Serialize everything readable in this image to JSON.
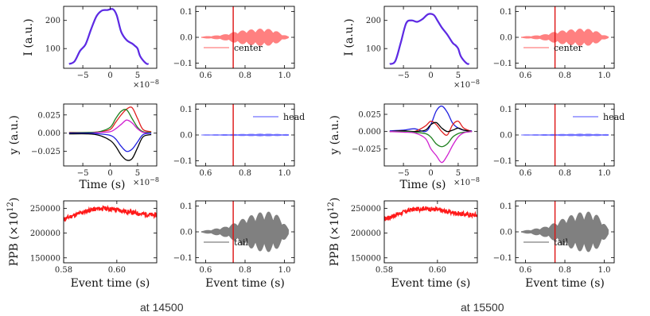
{
  "captions": [
    "at 14500",
    "at 15500"
  ],
  "labels": {
    "profile_ylabel": "I (a.u.)",
    "centroid_ylabel": "y (a.u.)",
    "ppb_ylabel_main": "PPB",
    "ppb_ylabel_unit": "(×10",
    "ppb_ylabel_exp": "12",
    "ppb_ylabel_close": ")",
    "time_xlabel": "Time (s)",
    "event_xlabel": "Event time (s)",
    "exp_label_base": "×10",
    "exp_label_power": "−8"
  },
  "legends": {
    "center": "center",
    "head": "head",
    "tail": "tail"
  },
  "colors": {
    "profile": "#7a1fd6",
    "center": "#ff8080",
    "head": "#7070ff",
    "tail": "#808080",
    "ppb": "#ff1a1a",
    "marker": "#dd1111"
  },
  "chart_data": [
    {
      "panel": "at 14500 / longitudinal profile",
      "type": "line",
      "x": [
        -7.5,
        -6.5,
        -5.5,
        -4.5,
        -3.5,
        -2.5,
        -1.5,
        -0.5,
        0.5,
        1.2,
        2.0,
        3.0,
        4.0,
        4.5,
        5.0,
        5.5,
        6.5,
        7.0
      ],
      "y": [
        45,
        55,
        92,
        115,
        168,
        215,
        235,
        237,
        240,
        218,
        160,
        130,
        118,
        110,
        100,
        72,
        48,
        45
      ],
      "xlim": [
        -8.5,
        8.5
      ],
      "ylim": [
        30,
        250
      ],
      "xticks": [
        -5,
        0,
        5
      ],
      "yticks": [
        100,
        200
      ]
    },
    {
      "panel": "at 14500 / center",
      "type": "line",
      "legend": [
        "center"
      ],
      "xlim": [
        0.55,
        1.05
      ],
      "ylim": [
        -0.12,
        0.12
      ],
      "xticks": [
        0.6,
        0.8,
        1.0
      ],
      "yticks": [
        -0.1,
        0.0,
        0.1
      ],
      "envelope_x": [
        0.58,
        0.65,
        0.7,
        0.75,
        0.8,
        0.85,
        0.9,
        0.95,
        0.99,
        1.02
      ],
      "envelope_y": [
        0.003,
        0.007,
        0.012,
        0.022,
        0.028,
        0.032,
        0.035,
        0.028,
        0.012,
        0.003
      ],
      "marker_x": 0.74
    },
    {
      "panel": "at 14500 / head-tail centroid",
      "type": "line",
      "xlim": [
        -8.5,
        8.5
      ],
      "ylim": [
        -0.045,
        0.04
      ],
      "xticks": [
        -5,
        0,
        5
      ],
      "yticks": [
        -0.025,
        0.0,
        0.025
      ],
      "series": [
        {
          "color": "#e02020",
          "x": [
            -7.5,
            -4,
            -2,
            0,
            1,
            2,
            3,
            4,
            5,
            6,
            7.5
          ],
          "y": [
            0.001,
            0.001,
            0.002,
            0.005,
            0.015,
            0.025,
            0.033,
            0.035,
            0.02,
            0.005,
            0.002
          ]
        },
        {
          "color": "#208020",
          "x": [
            -7.5,
            -4,
            -2,
            0,
            1,
            2,
            3,
            4,
            5,
            6,
            7.5
          ],
          "y": [
            0.0005,
            0.001,
            0.002,
            0.008,
            0.02,
            0.03,
            0.032,
            0.02,
            0.008,
            0.002,
            0.001
          ]
        },
        {
          "color": "#d020d0",
          "x": [
            -7.5,
            -4,
            -2,
            0,
            1,
            2,
            3,
            4,
            5,
            6,
            7.5
          ],
          "y": [
            0.0,
            0.0,
            0.001,
            0.002,
            0.006,
            0.012,
            0.018,
            0.014,
            0.006,
            0.001,
            0.0
          ]
        },
        {
          "color": "#2020e0",
          "x": [
            -7.5,
            -4,
            -2,
            0,
            1,
            2,
            3,
            4,
            5,
            6,
            7.5
          ],
          "y": [
            0.0,
            0.0,
            -0.001,
            -0.003,
            -0.008,
            -0.018,
            -0.025,
            -0.022,
            -0.012,
            -0.002,
            0.0
          ]
        },
        {
          "color": "#000000",
          "x": [
            -7.5,
            -4,
            -2,
            0,
            1,
            2,
            3,
            4,
            5,
            6,
            7.5
          ],
          "y": [
            -0.001,
            -0.001,
            -0.003,
            -0.01,
            -0.018,
            -0.03,
            -0.037,
            -0.035,
            -0.02,
            -0.005,
            -0.002
          ]
        }
      ]
    },
    {
      "panel": "at 14500 / head",
      "type": "line",
      "legend": [
        "head"
      ],
      "xlim": [
        0.55,
        1.05
      ],
      "ylim": [
        -0.12,
        0.12
      ],
      "xticks": [
        0.6,
        0.8,
        1.0
      ],
      "yticks": [
        -0.1,
        0.0,
        0.1
      ],
      "envelope_x": [
        0.58,
        0.7,
        0.8,
        0.9,
        1.02
      ],
      "envelope_y": [
        0.002,
        0.003,
        0.004,
        0.005,
        0.003
      ],
      "marker_x": 0.74
    },
    {
      "panel": "at 14500 / PPB",
      "type": "line",
      "x": [
        0.58,
        0.585,
        0.59,
        0.595,
        0.6,
        0.605,
        0.61,
        0.615
      ],
      "y": [
        228000,
        238000,
        247000,
        250000,
        247000,
        242000,
        238000,
        236000
      ],
      "xlim": [
        0.58,
        0.615
      ],
      "ylim": [
        140000,
        265000
      ],
      "xticks": [
        0.58,
        0.6
      ],
      "yticks": [
        150000,
        200000,
        250000
      ]
    },
    {
      "panel": "at 14500 / tail",
      "type": "line",
      "legend": [
        "tail"
      ],
      "xlim": [
        0.55,
        1.05
      ],
      "ylim": [
        -0.12,
        0.12
      ],
      "xticks": [
        0.6,
        0.8,
        1.0
      ],
      "yticks": [
        -0.1,
        0.0,
        0.1
      ],
      "envelope_x": [
        0.58,
        0.62,
        0.66,
        0.7,
        0.75,
        0.8,
        0.85,
        0.9,
        0.95,
        0.99,
        1.02
      ],
      "envelope_y": [
        0.004,
        0.008,
        0.014,
        0.02,
        0.035,
        0.055,
        0.07,
        0.08,
        0.075,
        0.045,
        0.01
      ],
      "marker_x": 0.74
    },
    {
      "panel": "at 15500 / longitudinal profile",
      "type": "line",
      "x": [
        -7.5,
        -6.5,
        -5.5,
        -4.5,
        -3.5,
        -2.5,
        -1.5,
        -0.5,
        0.5,
        1.2,
        2.0,
        3.0,
        4.0,
        4.5,
        5.0,
        5.5,
        6.5,
        7.0
      ],
      "y": [
        45,
        55,
        120,
        190,
        200,
        195,
        205,
        222,
        220,
        200,
        175,
        150,
        120,
        112,
        100,
        72,
        48,
        45
      ],
      "xlim": [
        -8.5,
        8.5
      ],
      "ylim": [
        30,
        250
      ],
      "xticks": [
        -5,
        0,
        5
      ],
      "yticks": [
        100,
        200
      ]
    },
    {
      "panel": "at 15500 / center",
      "type": "line",
      "legend": [
        "center"
      ],
      "xlim": [
        0.55,
        1.05
      ],
      "ylim": [
        -0.12,
        0.12
      ],
      "xticks": [
        0.6,
        0.8,
        1.0
      ],
      "yticks": [
        -0.1,
        0.0,
        0.1
      ],
      "envelope_x": [
        0.58,
        0.65,
        0.7,
        0.75,
        0.8,
        0.85,
        0.9,
        0.95,
        0.99,
        1.02
      ],
      "envelope_y": [
        0.003,
        0.007,
        0.012,
        0.022,
        0.028,
        0.032,
        0.035,
        0.028,
        0.012,
        0.003
      ],
      "marker_x": 0.75
    },
    {
      "panel": "at 15500 / head-tail centroid",
      "type": "line",
      "xlim": [
        -8.5,
        8.5
      ],
      "ylim": [
        -0.05,
        0.04
      ],
      "xticks": [
        -5,
        0,
        5
      ],
      "yticks": [
        -0.025,
        0.0,
        0.025
      ],
      "series": [
        {
          "color": "#2020e0",
          "x": [
            -7.5,
            -5,
            -3,
            -1,
            0,
            1,
            2,
            3,
            4,
            5,
            6,
            7.5
          ],
          "y": [
            0.001,
            0.002,
            0.004,
            0.0,
            0.01,
            0.03,
            0.037,
            0.028,
            0.012,
            0.005,
            0.002,
            0.001
          ]
        },
        {
          "color": "#e02020",
          "x": [
            -7.5,
            -5,
            -3,
            -1,
            0,
            1,
            2,
            3,
            4,
            5,
            6,
            7.5
          ],
          "y": [
            0.0,
            0.001,
            0.0,
            0.008,
            0.015,
            0.01,
            0.0,
            -0.005,
            0.01,
            0.015,
            0.005,
            0.0
          ]
        },
        {
          "color": "#000000",
          "x": [
            -7.5,
            -5,
            -3,
            -1,
            0,
            1,
            2,
            3,
            4,
            5,
            6,
            7.5
          ],
          "y": [
            0.0,
            0.001,
            0.0,
            0.002,
            0.01,
            0.013,
            0.005,
            0.0,
            0.002,
            0.005,
            0.002,
            0.0
          ]
        },
        {
          "color": "#208020",
          "x": [
            -7.5,
            -5,
            -3,
            -1,
            0,
            1,
            2,
            3,
            4,
            5,
            6,
            7.5
          ],
          "y": [
            0.0,
            0.0,
            -0.001,
            -0.003,
            -0.008,
            -0.018,
            -0.022,
            -0.018,
            -0.008,
            -0.003,
            -0.001,
            0.0
          ]
        },
        {
          "color": "#d020d0",
          "x": [
            -7.5,
            -5,
            -3,
            -1,
            0,
            1,
            2,
            3,
            4,
            5,
            6,
            7.5
          ],
          "y": [
            0.0,
            -0.001,
            -0.002,
            -0.01,
            -0.025,
            -0.035,
            -0.045,
            -0.035,
            -0.02,
            -0.008,
            -0.002,
            0.0
          ]
        }
      ]
    },
    {
      "panel": "at 15500 / head",
      "type": "line",
      "legend": [
        "head"
      ],
      "xlim": [
        0.55,
        1.05
      ],
      "ylim": [
        -0.12,
        0.12
      ],
      "xticks": [
        0.6,
        0.8,
        1.0
      ],
      "yticks": [
        -0.1,
        0.0,
        0.1
      ],
      "envelope_x": [
        0.58,
        0.7,
        0.8,
        0.9,
        1.02
      ],
      "envelope_y": [
        0.002,
        0.003,
        0.004,
        0.005,
        0.003
      ],
      "marker_x": 0.75
    },
    {
      "panel": "at 15500 / PPB",
      "type": "line",
      "x": [
        0.58,
        0.585,
        0.59,
        0.595,
        0.6,
        0.605,
        0.61,
        0.615
      ],
      "y": [
        228000,
        238000,
        247000,
        250000,
        247000,
        242000,
        238000,
        236000
      ],
      "xlim": [
        0.58,
        0.615
      ],
      "ylim": [
        140000,
        265000
      ],
      "xticks": [
        0.58,
        0.6
      ],
      "yticks": [
        150000,
        200000,
        250000
      ]
    },
    {
      "panel": "at 15500 / tail",
      "type": "line",
      "legend": [
        "tail"
      ],
      "xlim": [
        0.55,
        1.05
      ],
      "ylim": [
        -0.12,
        0.12
      ],
      "xticks": [
        0.6,
        0.8,
        1.0
      ],
      "yticks": [
        -0.1,
        0.0,
        0.1
      ],
      "envelope_x": [
        0.58,
        0.62,
        0.66,
        0.7,
        0.75,
        0.8,
        0.85,
        0.9,
        0.95,
        0.99,
        1.02
      ],
      "envelope_y": [
        0.004,
        0.008,
        0.014,
        0.02,
        0.035,
        0.055,
        0.07,
        0.08,
        0.075,
        0.045,
        0.01
      ],
      "marker_x": 0.75
    }
  ]
}
